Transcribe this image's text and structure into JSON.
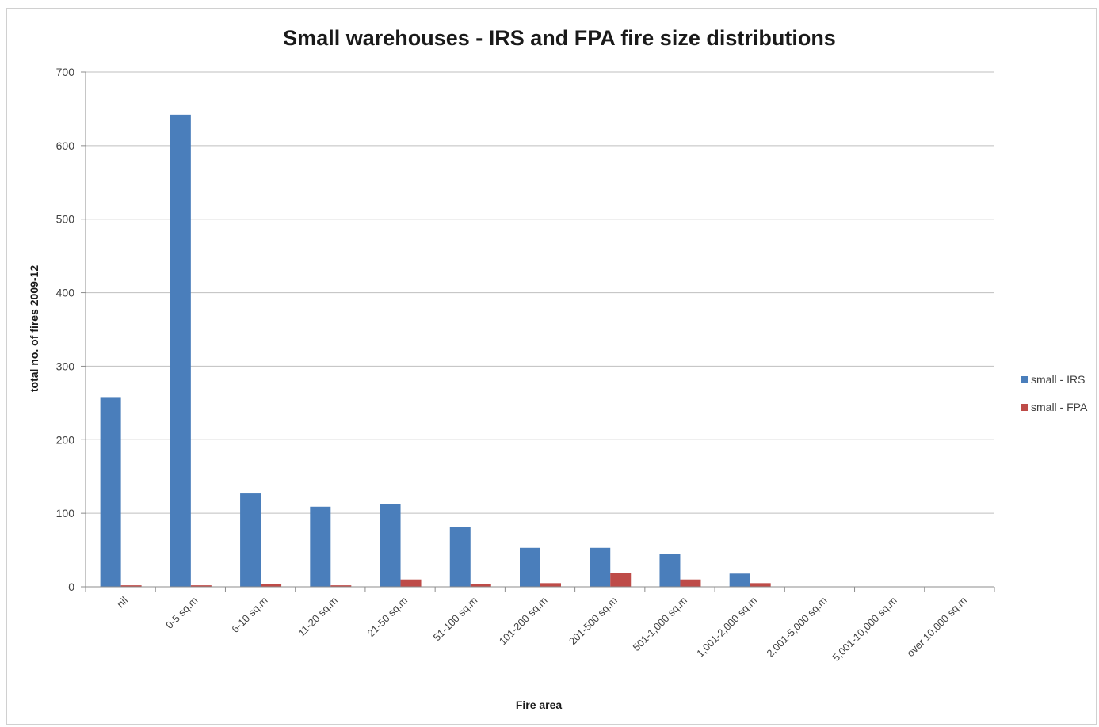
{
  "chart_data": {
    "type": "bar",
    "title": "Small warehouses - IRS and FPA fire size distributions",
    "xlabel": "Fire area",
    "ylabel": "total no. of fires 2009-12",
    "ylim": [
      0,
      700
    ],
    "yticks": [
      0,
      100,
      200,
      300,
      400,
      500,
      600,
      700
    ],
    "grid": true,
    "legend_position": "right",
    "categories": [
      "nil",
      "0-5 sq.m",
      "6-10 sq.m",
      "11-20 sq.m",
      "21-50 sq.m",
      "51-100 sq.m",
      "101-200 sq.m",
      "201-500 sq.m",
      "501-1,000 sq.m",
      "1,001-2,000 sq.m",
      "2,001-5,000 sq.m",
      "5,001-10,000 sq.m",
      "over 10,000 sq.m"
    ],
    "series": [
      {
        "name": "small - IRS",
        "color": "#4a7ebb",
        "values": [
          258,
          642,
          127,
          109,
          113,
          81,
          53,
          53,
          45,
          18,
          0,
          0,
          0
        ]
      },
      {
        "name": "small - FPA",
        "color": "#be4b48",
        "values": [
          2,
          2,
          4,
          2,
          10,
          4,
          5,
          19,
          10,
          5,
          0,
          0,
          0
        ]
      }
    ]
  }
}
